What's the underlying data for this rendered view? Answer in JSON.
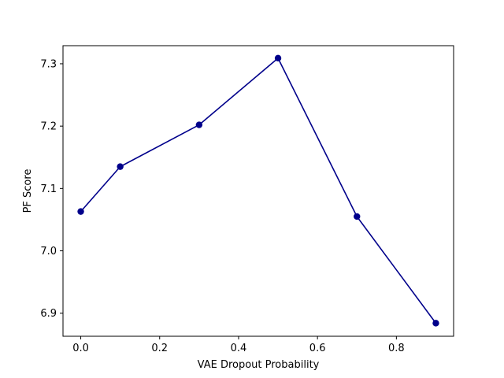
{
  "chart_data": {
    "type": "line",
    "title": "",
    "xlabel": "VAE Dropout Probability",
    "ylabel": "PF Score",
    "xlim": [
      -0.045,
      0.945
    ],
    "ylim": [
      6.863,
      7.329
    ],
    "x_ticks": [
      0.0,
      0.2,
      0.4,
      0.6,
      0.8
    ],
    "x_tick_labels": [
      "0.0",
      "0.2",
      "0.4",
      "0.6",
      "0.8"
    ],
    "y_ticks": [
      6.9,
      7.0,
      7.1,
      7.2,
      7.3
    ],
    "y_tick_labels": [
      "6.9",
      "7.0",
      "7.1",
      "7.2",
      "7.3"
    ],
    "grid": false,
    "series": [
      {
        "color": "#00008b",
        "marker": "circle",
        "x": [
          0.0,
          0.1,
          0.3,
          0.5,
          0.7,
          0.9
        ],
        "y": [
          7.063,
          7.135,
          7.202,
          7.309,
          7.055,
          6.884
        ]
      }
    ]
  }
}
